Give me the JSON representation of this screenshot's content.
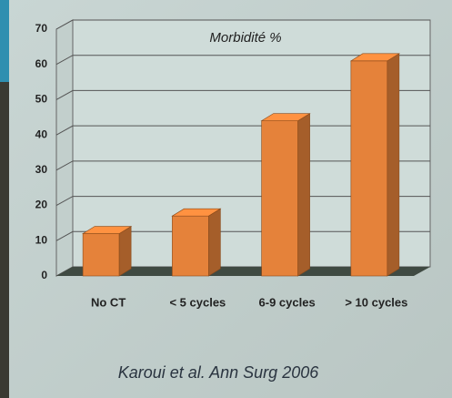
{
  "chart_data": {
    "type": "bar3d",
    "title": "Morbidité %",
    "categories": [
      "No CT",
      "< 5 cycles",
      "6-9 cycles",
      "> 10 cycles"
    ],
    "values": [
      12,
      17,
      44,
      61
    ],
    "color": "#e5823a",
    "ylim": [
      0,
      70
    ],
    "yticks": [
      0,
      10,
      20,
      30,
      40,
      50,
      60,
      70
    ],
    "grid": true,
    "caption": "Karoui et al. Ann Surg 2006"
  }
}
